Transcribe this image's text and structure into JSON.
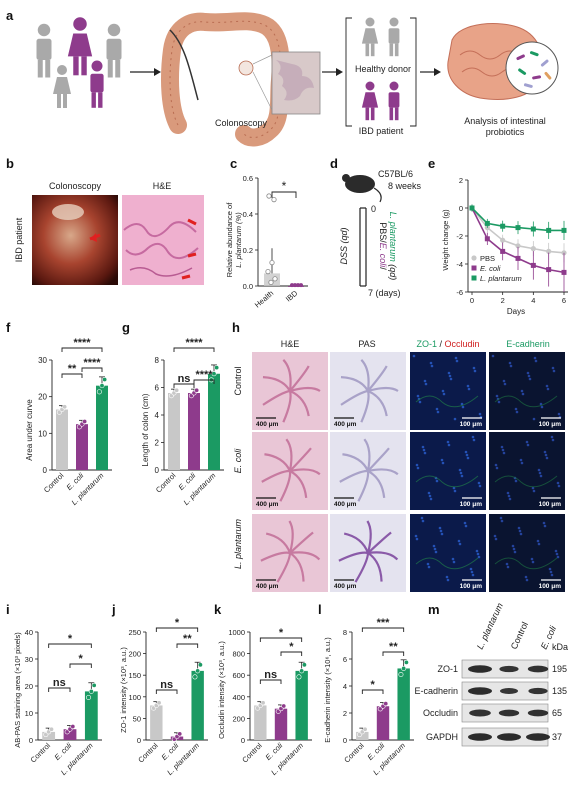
{
  "colors": {
    "grey": "#c8c8c8",
    "purple": "#8e3b8c",
    "green": "#1b9a63",
    "healthy_person": "#a9a9a9",
    "ibd_person": "#8e3b8c",
    "colon": "#d99a7c",
    "stain_blue": "#0b1a4a"
  },
  "panel_a": {
    "letter": "a",
    "colonoscopy": "Colonoscopy",
    "healthy_donor": "Healthy donor",
    "ibd_patient": "IBD patient",
    "analysis_line1": "Analysis of intestinal",
    "analysis_line2": "probiotics"
  },
  "panel_b": {
    "letter": "b",
    "col1": "Colonoscopy",
    "col2": "H&E",
    "row": "IBD patient"
  },
  "panel_c": {
    "letter": "c",
    "ylabel_line1": "Relative abundance of",
    "ylabel_line2": "L. plantarum (%)",
    "star": "*",
    "chart_data": {
      "type": "bar",
      "categories": [
        "Health",
        "IBD"
      ],
      "values": [
        0.07,
        0.0
      ],
      "ylim": [
        0.0,
        0.6
      ],
      "yticks": [
        "0.0",
        "0.2",
        "0.4",
        "0.6"
      ]
    }
  },
  "panel_d": {
    "letter": "d",
    "mouse_line1": "C57BL/6",
    "mouse_line2": "8 weeks",
    "day0": "0",
    "dss": "DSS (qd)",
    "treat_pbs": "PBS/",
    "treat_ecoli": "E. coli",
    "treat_slash": "/",
    "treat_lp": "L. plantarum",
    "treat_qd": " (qd)",
    "day7": "7 (days)"
  },
  "panel_e": {
    "letter": "e",
    "ylabel": "Weight change (g)",
    "xlabel": "Days",
    "chart_data": {
      "type": "line",
      "x": [
        0,
        1,
        2,
        3,
        4,
        5,
        6
      ],
      "ylim": [
        -6,
        2
      ],
      "yticks": [
        "-6",
        "-4",
        "-2",
        "0",
        "2"
      ],
      "xticks": [
        "0",
        "2",
        "4",
        "6"
      ],
      "series": [
        {
          "name": "PBS",
          "values": [
            0.0,
            -1.4,
            -2.3,
            -2.7,
            -2.9,
            -3.1,
            -3.2
          ]
        },
        {
          "name": "E. coli",
          "values": [
            0.0,
            -2.2,
            -3.1,
            -3.6,
            -4.1,
            -4.4,
            -4.6
          ]
        },
        {
          "name": "L. plantarum",
          "values": [
            0.0,
            -1.1,
            -1.3,
            -1.4,
            -1.5,
            -1.6,
            -1.6
          ]
        }
      ]
    }
  },
  "panel_f": {
    "letter": "f",
    "ylabel": "Area under curve",
    "sig": [
      "****",
      "**",
      "****"
    ],
    "chart_data": {
      "type": "bar",
      "categories": [
        "Control",
        "E. coli",
        "L. plantarum"
      ],
      "values": [
        16.5,
        12.5,
        23.0
      ],
      "ylim": [
        0,
        30
      ],
      "yticks": [
        "0",
        "10",
        "20",
        "30"
      ]
    }
  },
  "panel_g": {
    "letter": "g",
    "ylabel": "Length of colon (cm)",
    "sig": [
      "****",
      "ns",
      "****"
    ],
    "chart_data": {
      "type": "bar",
      "categories": [
        "Control",
        "E. coli",
        "L. plantarum"
      ],
      "values": [
        5.6,
        5.6,
        7.0
      ],
      "ylim": [
        0,
        8
      ],
      "yticks": [
        "0",
        "2",
        "4",
        "6",
        "8"
      ]
    }
  },
  "panel_h": {
    "letter": "h",
    "col_he": "H&E",
    "col_pas": "PAS",
    "col_zo1": "ZO-1",
    "col_slash": " / ",
    "col_occludin": "Occludin",
    "col_ecad": "E-cadherin",
    "rows": [
      "Control",
      "E. coli",
      "L. plantarum"
    ],
    "scale_400": "400 μm",
    "scale_100": "100 μm"
  },
  "panel_i": {
    "letter": "i",
    "ylabel": "AB-PAS staining area (×10³ pixels)",
    "sig": [
      "*",
      "ns",
      "*"
    ],
    "chart_data": {
      "type": "bar",
      "categories": [
        "Control",
        "E. coli",
        "L. plantarum"
      ],
      "values": [
        3.0,
        4.0,
        18.0
      ],
      "ylim": [
        0,
        40
      ],
      "yticks": [
        "0",
        "10",
        "20",
        "30",
        "40"
      ]
    }
  },
  "panel_j": {
    "letter": "j",
    "ylabel": "ZO-1 intensity (×10³, a.u.)",
    "sig": [
      "*",
      "ns",
      "**"
    ],
    "chart_data": {
      "type": "bar",
      "categories": [
        "Control",
        "E. coli",
        "L. plantarum"
      ],
      "values": [
        80,
        8,
        160
      ],
      "ylim": [
        0,
        250
      ],
      "yticks": [
        "0",
        "50",
        "100",
        "150",
        "200",
        "250"
      ]
    }
  },
  "panel_k": {
    "letter": "k",
    "ylabel": "Occludin intensity (×10³, a.u.)",
    "sig": [
      "*",
      "ns",
      "*"
    ],
    "chart_data": {
      "type": "bar",
      "categories": [
        "Control",
        "E. coli",
        "L. plantarum"
      ],
      "values": [
        320,
        290,
        640
      ],
      "ylim": [
        0,
        1000
      ],
      "yticks": [
        "0",
        "200",
        "400",
        "600",
        "800",
        "1000"
      ]
    }
  },
  "panel_l": {
    "letter": "l",
    "ylabel": "E-cadherin intensity (×10⁶, a.u.)",
    "sig": [
      "***",
      "*",
      "**"
    ],
    "chart_data": {
      "type": "bar",
      "categories": [
        "Control",
        "E. coli",
        "L. plantarum"
      ],
      "values": [
        0.6,
        2.5,
        5.3
      ],
      "ylim": [
        0,
        8
      ],
      "yticks": [
        "0",
        "2",
        "4",
        "6",
        "8"
      ]
    }
  },
  "panel_m": {
    "letter": "m",
    "lanes": [
      "L. plantarum",
      "Control",
      "E. coli"
    ],
    "kda": "kDa",
    "bands": [
      {
        "name": "ZO-1",
        "kda": "195"
      },
      {
        "name": "E-cadherin",
        "kda": "135"
      },
      {
        "name": "Occludin",
        "kda": "65"
      },
      {
        "name": "GAPDH",
        "kda": "37"
      }
    ]
  }
}
